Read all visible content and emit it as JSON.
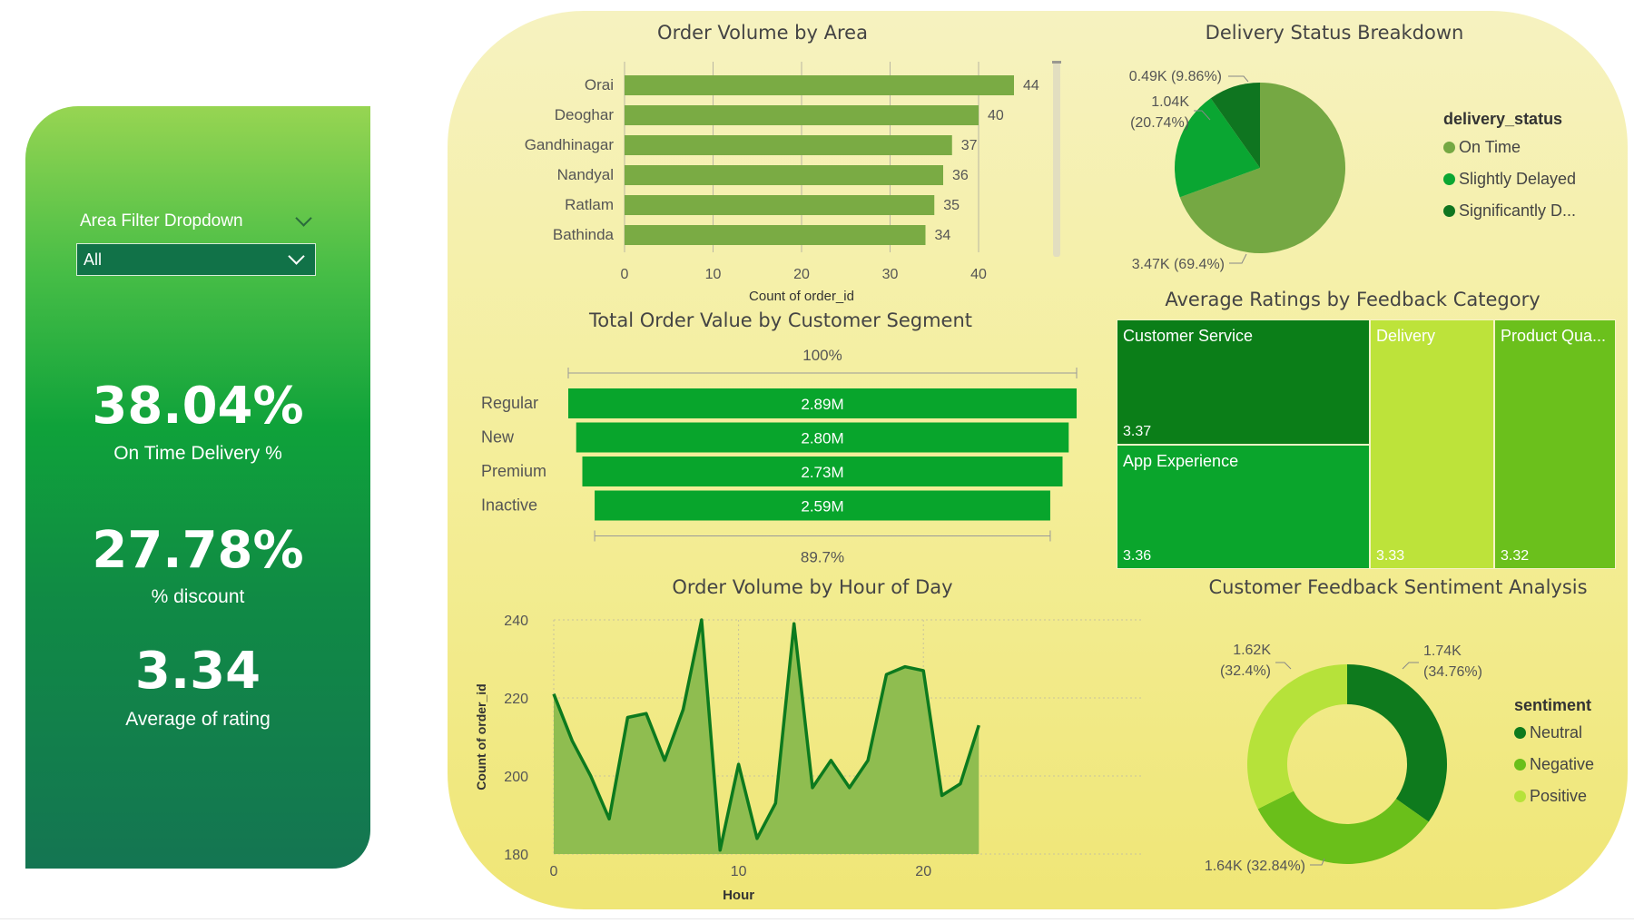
{
  "kpis": {
    "slicer_title": "Area Filter Dropdown",
    "area_filter_value": "All",
    "on_time_value": "38.04%",
    "on_time_label": "On Time Delivery %",
    "discount_value": "27.78%",
    "discount_label": "% discount",
    "rating_value": "3.34",
    "rating_label": "Average of rating"
  },
  "colors": {
    "bar_green": "#7aab44",
    "funnel_green": "#08a52c",
    "on_time": "#75a843",
    "slightly_delayed": "#0aa632",
    "significantly_delayed": "#0f7520",
    "neutral": "#0e7a1d",
    "negative": "#6abf1a",
    "positive": "#b6e23a"
  },
  "charts": {
    "area": {
      "title": "Order Volume by Area",
      "xlabel": "Count of order_id",
      "chart_data": {
        "type": "bar",
        "categories": [
          "Orai",
          "Deoghar",
          "Gandhinagar",
          "Nandyal",
          "Ratlam",
          "Bathinda"
        ],
        "values": [
          44,
          40,
          37,
          36,
          35,
          34
        ],
        "xlim": [
          0,
          48
        ],
        "xticks": [
          "0",
          "10",
          "20",
          "30",
          "40"
        ],
        "xlabel": "Count of order_id"
      }
    },
    "delivery": {
      "title": "Delivery Status Breakdown",
      "legend_title": "delivery_status",
      "legend": [
        "On Time",
        "Slightly Delayed",
        "Significantly D..."
      ],
      "labels": {
        "significantly_delayed": "0.49K (9.86%)",
        "slightly_delayed_1": "1.04K",
        "slightly_delayed_2": "(20.74%)",
        "on_time": "3.47K (69.4%)"
      },
      "chart_data": {
        "type": "pie",
        "categories": [
          "On Time",
          "Slightly Delayed",
          "Significantly Delayed"
        ],
        "values": [
          3470,
          1040,
          490
        ],
        "percents": [
          69.4,
          20.74,
          9.86
        ]
      }
    },
    "segment": {
      "title": "Total Order Value by Customer Segment",
      "top_pct": "100%",
      "bottom_pct": "89.7%",
      "value_labels": [
        "2.89M",
        "2.80M",
        "2.73M",
        "2.59M"
      ],
      "chart_data": {
        "type": "bar",
        "categories": [
          "Regular",
          "New",
          "Premium",
          "Inactive"
        ],
        "values": [
          2.89,
          2.8,
          2.73,
          2.59
        ],
        "unit": "M"
      }
    },
    "ratings": {
      "title": "Average Ratings by Feedback Category",
      "cells": [
        {
          "label": "Customer Service",
          "value": "3.37",
          "color": "#0b7e18"
        },
        {
          "label": "App Experience",
          "value": "3.36",
          "color": "#0aa52c"
        },
        {
          "label": "Delivery",
          "value": "3.33",
          "color": "#bde33a"
        },
        {
          "label": "Product Qua...",
          "value": "3.32",
          "color": "#6bc01c"
        }
      ],
      "chart_data": {
        "type": "treemap",
        "categories": [
          "Customer Service",
          "App Experience",
          "Delivery",
          "Product Quality"
        ],
        "values": [
          3.37,
          3.36,
          3.33,
          3.32
        ]
      }
    },
    "hour": {
      "title": "Order Volume by Hour of Day",
      "xlabel": "Hour",
      "ylabel": "Count of order_id",
      "chart_data": {
        "type": "area",
        "x": [
          0,
          1,
          2,
          3,
          4,
          5,
          6,
          7,
          8,
          9,
          10,
          11,
          12,
          13,
          14,
          15,
          16,
          17,
          18,
          19,
          20,
          21,
          22,
          23
        ],
        "values": [
          221,
          209,
          200,
          189,
          215,
          216,
          204,
          217,
          240,
          181,
          203,
          184,
          193,
          239,
          197,
          204,
          197,
          204,
          226,
          228,
          227,
          195,
          198,
          213
        ],
        "xlim": [
          0,
          25
        ],
        "ylim": [
          180,
          240
        ],
        "xticks": [
          0,
          10,
          20
        ],
        "yticks": [
          180,
          200,
          220,
          240
        ],
        "xlabel": "Hour",
        "ylabel": "Count of order_id"
      }
    },
    "sentiment": {
      "title": "Customer Feedback Sentiment Analysis",
      "legend_title": "sentiment",
      "legend": [
        "Neutral",
        "Negative",
        "Positive"
      ],
      "labels": {
        "neutral_1": "1.74K",
        "neutral_2": "(34.76%)",
        "positive_1": "1.62K",
        "positive_2": "(32.4%)",
        "negative": "1.64K (32.84%)"
      },
      "chart_data": {
        "type": "pie",
        "donut": true,
        "categories": [
          "Neutral",
          "Negative",
          "Positive"
        ],
        "values": [
          1740,
          1640,
          1620
        ],
        "percents": [
          34.76,
          32.84,
          32.4
        ]
      }
    }
  }
}
